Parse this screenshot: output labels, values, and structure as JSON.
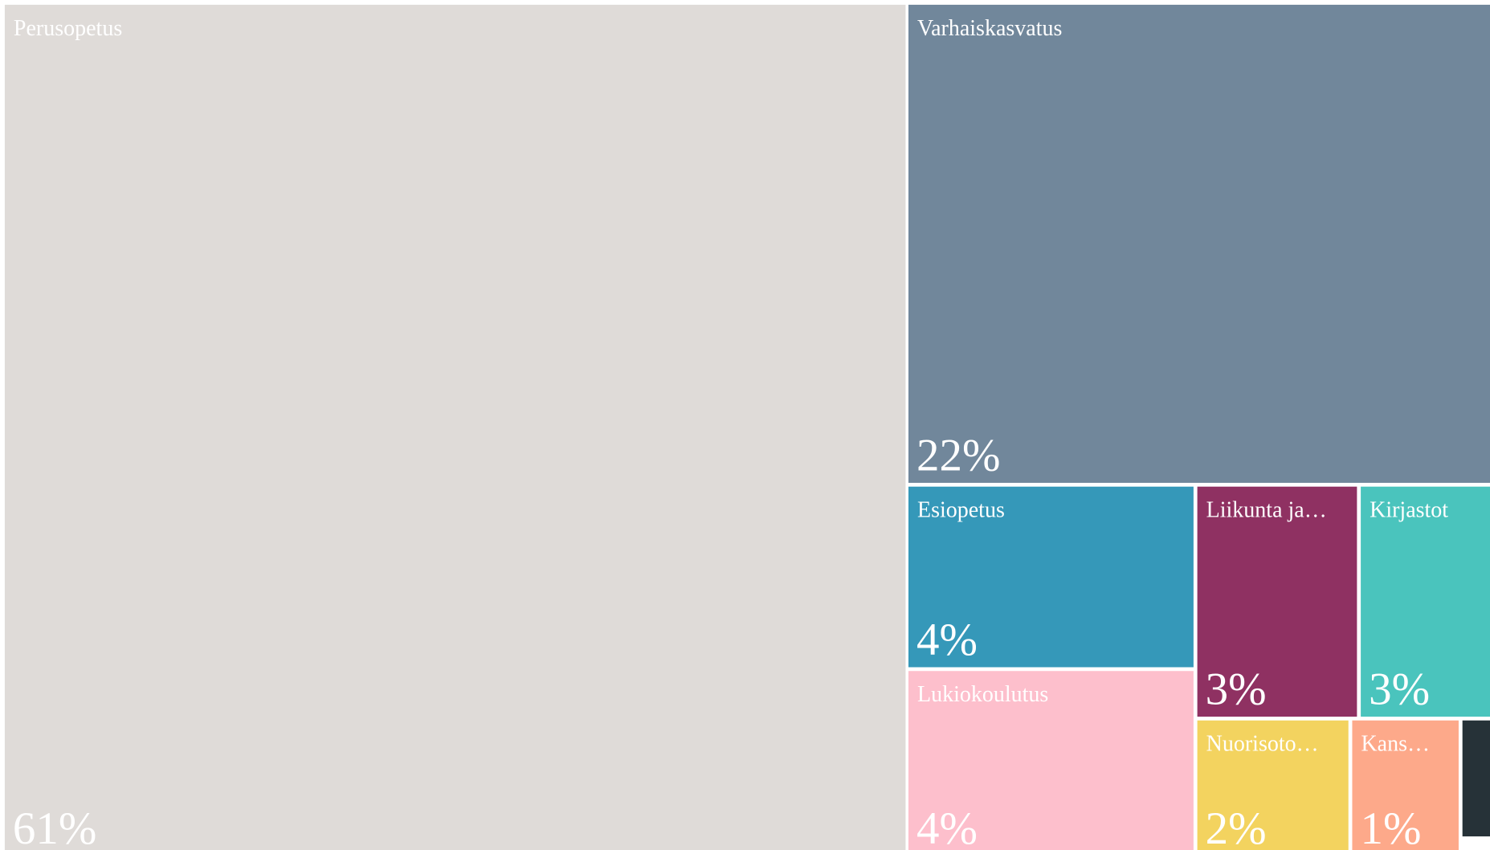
{
  "chart_data": {
    "type": "treemap",
    "categories": [
      "Perusopetus",
      "Varhaiskasvatus",
      "Esiopetus",
      "Lukiokoulutus",
      "Liikunta ja…",
      "Kirjastot",
      "Nuorisoto…",
      "Kans…",
      null
    ],
    "values": [
      61,
      22,
      4,
      4,
      3,
      3,
      2,
      1,
      0.5
    ],
    "value_labels": [
      "61%",
      "22%",
      "4%",
      "4%",
      "3%",
      "3%",
      "2%",
      "1%",
      null
    ],
    "colors": [
      "#dfdbd8",
      "#71879b",
      "#3598b9",
      "#fdbfcc",
      "#8f3162",
      "#4ac4bd",
      "#f3d35f",
      "#fda98a",
      "#263238"
    ]
  }
}
